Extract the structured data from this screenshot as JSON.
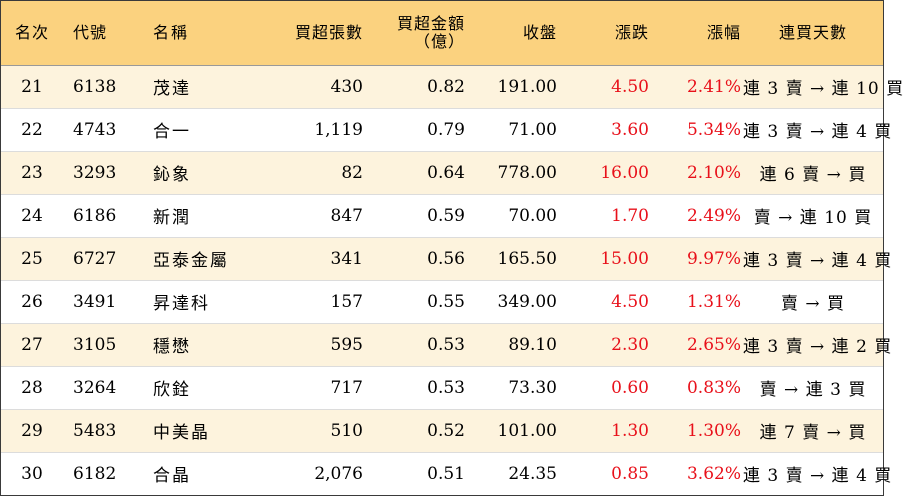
{
  "headers": {
    "rank": "名次",
    "code": "代號",
    "name": "名稱",
    "volume": "買超張數",
    "amount_line1": "買超金額",
    "amount_line2": "（億）",
    "close": "收盤",
    "change": "漲跌",
    "pct": "漲幅",
    "days": "連買天數"
  },
  "colors": {
    "header_bg": "#fbd27f",
    "odd_row_bg": "#fdf3dd",
    "up_red": "#e8101a"
  },
  "rows": [
    {
      "rank": "21",
      "code": "6138",
      "name": "茂達",
      "volume": "430",
      "amount": "0.82",
      "close": "191.00",
      "change": "4.50",
      "pct": "2.41%",
      "days": "連 3 賣 → 連 10 買"
    },
    {
      "rank": "22",
      "code": "4743",
      "name": "合一",
      "volume": "1,119",
      "amount": "0.79",
      "close": "71.00",
      "change": "3.60",
      "pct": "5.34%",
      "days": "連 3 賣 → 連 4 買"
    },
    {
      "rank": "23",
      "code": "3293",
      "name": "鈊象",
      "volume": "82",
      "amount": "0.64",
      "close": "778.00",
      "change": "16.00",
      "pct": "2.10%",
      "days": "連 6 賣 → 買"
    },
    {
      "rank": "24",
      "code": "6186",
      "name": "新潤",
      "volume": "847",
      "amount": "0.59",
      "close": "70.00",
      "change": "1.70",
      "pct": "2.49%",
      "days": "賣 → 連 10 買"
    },
    {
      "rank": "25",
      "code": "6727",
      "name": "亞泰金屬",
      "volume": "341",
      "amount": "0.56",
      "close": "165.50",
      "change": "15.00",
      "pct": "9.97%",
      "days": "連 3 賣 → 連 4 買"
    },
    {
      "rank": "26",
      "code": "3491",
      "name": "昇達科",
      "volume": "157",
      "amount": "0.55",
      "close": "349.00",
      "change": "4.50",
      "pct": "1.31%",
      "days": "賣 → 買"
    },
    {
      "rank": "27",
      "code": "3105",
      "name": "穩懋",
      "volume": "595",
      "amount": "0.53",
      "close": "89.10",
      "change": "2.30",
      "pct": "2.65%",
      "days": "連 3 賣 → 連 2 買"
    },
    {
      "rank": "28",
      "code": "3264",
      "name": "欣銓",
      "volume": "717",
      "amount": "0.53",
      "close": "73.30",
      "change": "0.60",
      "pct": "0.83%",
      "days": "賣 → 連 3 買"
    },
    {
      "rank": "29",
      "code": "5483",
      "name": "中美晶",
      "volume": "510",
      "amount": "0.52",
      "close": "101.00",
      "change": "1.30",
      "pct": "1.30%",
      "days": "連 7 賣 → 買"
    },
    {
      "rank": "30",
      "code": "6182",
      "name": "合晶",
      "volume": "2,076",
      "amount": "0.51",
      "close": "24.35",
      "change": "0.85",
      "pct": "3.62%",
      "days": "連 3 賣 → 連 4 買"
    }
  ]
}
